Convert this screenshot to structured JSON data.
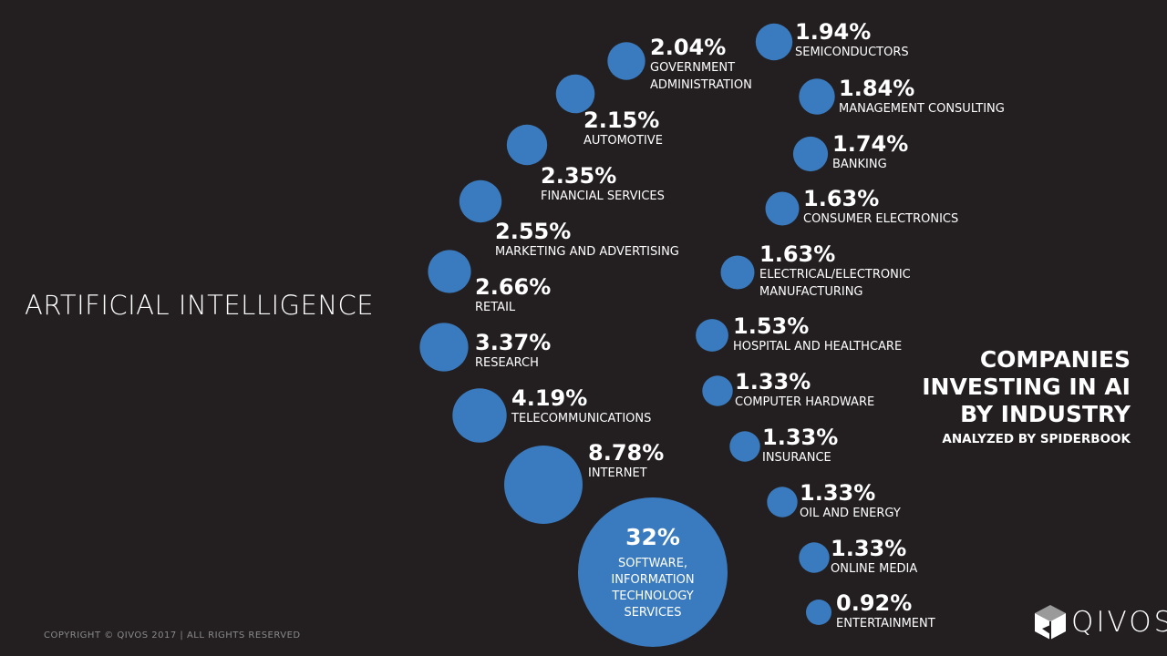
{
  "subject": "ARTIFICIAL INTELLIGENCE",
  "side_title": {
    "lines": [
      "COMPANIES",
      "INVESTING IN AI",
      "BY INDUSTRY"
    ],
    "subtitle": "ANALYZED BY SPIDERBOOK"
  },
  "copyright": "COPYRIGHT © QIVOS 2017 | ALL RIGHTS RESERVED",
  "logo": {
    "text": "QIVOS",
    "icon": "cube-icon"
  },
  "colors": {
    "background": "#231f20",
    "bubble": "#3a7bbf",
    "text": "#ffffff"
  },
  "chart_data": {
    "type": "bubble",
    "title": "COMPANIES INVESTING IN AI BY INDUSTRY",
    "unit": "%",
    "categories": [
      "SOFTWARE, INFORMATION TECHNOLOGY SERVICES",
      "INTERNET",
      "TELECOMMUNICATIONS",
      "RESEARCH",
      "RETAIL",
      "MARKETING AND ADVERTISING",
      "FINANCIAL SERVICES",
      "AUTOMOTIVE",
      "GOVERNMENT ADMINISTRATION",
      "SEMICONDUCTORS",
      "MANAGEMENT CONSULTING",
      "BANKING",
      "CONSUMER ELECTRONICS",
      "ELECTRICAL/ELECTRONIC MANUFACTURING",
      "HOSPITAL AND HEALTHCARE",
      "COMPUTER HARDWARE",
      "INSURANCE",
      "OIL AND ENERGY",
      "ONLINE MEDIA",
      "ENTERTAINMENT"
    ],
    "values": [
      32,
      8.78,
      4.19,
      3.37,
      2.66,
      2.55,
      2.35,
      2.15,
      2.04,
      1.94,
      1.84,
      1.74,
      1.63,
      1.63,
      1.53,
      1.33,
      1.33,
      1.33,
      1.33,
      0.92
    ],
    "value_labels": [
      "32%",
      "8.78%",
      "4.19%",
      "3.37%",
      "2.66%",
      "2.55%",
      "2.35%",
      "2.15%",
      "2.04%",
      "1.94%",
      "1.84%",
      "1.74%",
      "1.63%",
      "1.63%",
      "1.53%",
      "1.33%",
      "1.33%",
      "1.33%",
      "1.33%",
      "0.92%"
    ],
    "name_lines": [
      [
        "SOFTWARE,",
        "INFORMATION",
        "TECHNOLOGY",
        "SERVICES"
      ],
      [
        "INTERNET"
      ],
      [
        "TELECOMMUNICATIONS"
      ],
      [
        "RESEARCH"
      ],
      [
        "RETAIL"
      ],
      [
        "MARKETING AND ADVERTISING"
      ],
      [
        "FINANCIAL SERVICES"
      ],
      [
        "AUTOMOTIVE"
      ],
      [
        "GOVERNMENT",
        "ADMINISTRATION"
      ],
      [
        "SEMICONDUCTORS"
      ],
      [
        "MANAGEMENT CONSULTING"
      ],
      [
        "BANKING"
      ],
      [
        "CONSUMER ELECTRONICS"
      ],
      [
        "ELECTRICAL/ELECTRONIC",
        "MANUFACTURING"
      ],
      [
        "HOSPITAL AND HEALTHCARE"
      ],
      [
        "COMPUTER HARDWARE"
      ],
      [
        "INSURANCE"
      ],
      [
        "OIL AND ENERGY"
      ],
      [
        "ONLINE MEDIA"
      ],
      [
        "ENTERTAINMENT"
      ]
    ],
    "legend": "none",
    "grid": false
  }
}
